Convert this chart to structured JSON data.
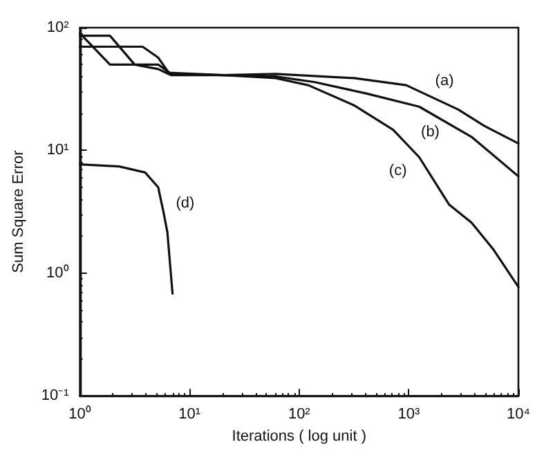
{
  "chart_data": {
    "type": "line",
    "xlabel": "Iterations ( log unit )",
    "ylabel": "Sum Square Error",
    "log": "xy",
    "grid": false,
    "legend": false,
    "marker": "none",
    "line_style": "solid",
    "xlim": [
      1,
      10000
    ],
    "ylim": [
      0.1,
      100
    ],
    "xticks": [
      {
        "value": 1,
        "label": "10⁰"
      },
      {
        "value": 10,
        "label": "10¹"
      },
      {
        "value": 100,
        "label": "10²"
      },
      {
        "value": 1000,
        "label": "10³"
      },
      {
        "value": 10000,
        "label": "10⁴"
      }
    ],
    "yticks": [
      {
        "value": 0.1,
        "label": "10⁻¹"
      },
      {
        "value": 1,
        "label": "10⁰"
      },
      {
        "value": 10,
        "label": "10¹"
      },
      {
        "value": 100,
        "label": "10²"
      }
    ],
    "series": [
      {
        "name": "(a)",
        "color": "#111111",
        "x": [
          1,
          1.88,
          5.18,
          6.81,
          20.4,
          61,
          316,
          946,
          2830,
          4900,
          10000
        ],
        "values": [
          90,
          50,
          50,
          42,
          41,
          42,
          38.8,
          34,
          21.5,
          15.8,
          11.4
        ]
      },
      {
        "name": "(b)",
        "color": "#111111",
        "x": [
          1,
          1.88,
          3.16,
          5.18,
          6.81,
          20.4,
          61,
          139,
          416,
          1245,
          3730,
          10000
        ],
        "values": [
          86,
          86,
          50,
          46,
          41,
          41,
          40,
          36,
          29,
          22.7,
          12.9,
          6.15
        ]
      },
      {
        "name": "(c)",
        "color": "#111111",
        "x": [
          1,
          3.73,
          5.18,
          6.45,
          20.4,
          61,
          121,
          316,
          720,
          1245,
          2340,
          3730,
          5940,
          10000
        ],
        "values": [
          70,
          70,
          57,
          43,
          41,
          38.8,
          34,
          23.3,
          14.7,
          8.8,
          3.6,
          2.58,
          1.55,
          0.77
        ]
      },
      {
        "name": "(d)",
        "color": "#111111",
        "x": [
          1,
          2.28,
          3.94,
          5.18,
          5.78,
          6.28,
          7.0
        ],
        "values": [
          7.7,
          7.4,
          6.6,
          5.0,
          3.16,
          2.15,
          0.68
        ]
      }
    ]
  }
}
